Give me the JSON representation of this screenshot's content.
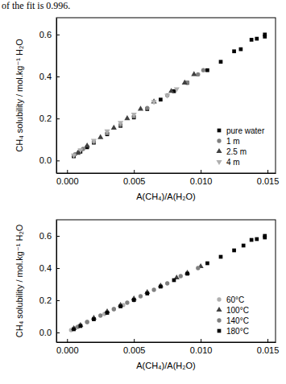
{
  "page_text": "of the fit is 0.996.",
  "chart_data": [
    {
      "type": "scatter",
      "xlabel": "A(CH₄)/A(H₂O)",
      "ylabel": "CH₄ solubility / mol.kg⁻¹ H₂O",
      "xlim": [
        -0.0008,
        0.0156
      ],
      "ylim": [
        -0.06,
        0.68
      ],
      "xticks": [
        {
          "value": 0,
          "label": "0.000"
        },
        {
          "value": 0.005,
          "label": "0.005"
        },
        {
          "value": 0.01,
          "label": "0.010"
        },
        {
          "value": 0.015,
          "label": "0.015"
        }
      ],
      "yticks": [
        {
          "value": 0,
          "label": "0.0"
        },
        {
          "value": 0.2,
          "label": "0.2"
        },
        {
          "value": 0.4,
          "label": "0.4"
        },
        {
          "value": 0.6,
          "label": "0.6"
        }
      ],
      "legend": "lower right",
      "series": [
        {
          "name": "pure water",
          "color": "#000000",
          "marker": "square",
          "x": [
            0.0005,
            0.001,
            0.0015,
            0.002,
            0.003,
            0.004,
            0.005,
            0.006,
            0.007,
            0.008,
            0.009,
            0.0105,
            0.0115,
            0.0125,
            0.013,
            0.0138,
            0.0142,
            0.0148,
            0.0148
          ],
          "values": [
            0.02,
            0.042,
            0.063,
            0.085,
            0.125,
            0.165,
            0.205,
            0.245,
            0.29,
            0.33,
            0.37,
            0.43,
            0.47,
            0.52,
            0.53,
            0.575,
            0.58,
            0.59,
            0.6
          ]
        },
        {
          "name": "1 m",
          "color": "#808080",
          "marker": "circle",
          "x": [
            0.0006,
            0.0012,
            0.002,
            0.003,
            0.004,
            0.005,
            0.006,
            0.0075,
            0.009,
            0.0098,
            0.0102
          ],
          "values": [
            0.03,
            0.055,
            0.09,
            0.13,
            0.17,
            0.21,
            0.25,
            0.31,
            0.37,
            0.41,
            0.43
          ]
        },
        {
          "name": "2.5 m",
          "color": "#404040",
          "marker": "triangle-up",
          "x": [
            0.0008,
            0.0015,
            0.0025,
            0.0035,
            0.0045,
            0.0055,
            0.0065,
            0.0078,
            0.0088,
            0.0095
          ],
          "values": [
            0.035,
            0.07,
            0.11,
            0.155,
            0.2,
            0.245,
            0.28,
            0.33,
            0.37,
            0.41
          ]
        },
        {
          "name": "4 m",
          "color": "#b0b0b0",
          "marker": "triangle-down",
          "x": [
            0.0005,
            0.001,
            0.002,
            0.003,
            0.004,
            0.005,
            0.0065,
            0.0075,
            0.0082
          ],
          "values": [
            0.025,
            0.05,
            0.095,
            0.14,
            0.18,
            0.22,
            0.28,
            0.31,
            0.34
          ]
        }
      ]
    },
    {
      "type": "scatter",
      "xlabel": "A(CH₄)/A(H₂O)",
      "ylabel": "CH₄ solubility / mol.kg⁻¹ H₂O",
      "xlim": [
        -0.0008,
        0.0156
      ],
      "ylim": [
        -0.06,
        0.7
      ],
      "xticks": [
        {
          "value": 0,
          "label": "0.000"
        },
        {
          "value": 0.005,
          "label": "0.005"
        },
        {
          "value": 0.01,
          "label": "0.010"
        },
        {
          "value": 0.015,
          "label": "0.015"
        }
      ],
      "yticks": [
        {
          "value": 0,
          "label": "0.0"
        },
        {
          "value": 0.2,
          "label": "0.2"
        },
        {
          "value": 0.4,
          "label": "0.4"
        },
        {
          "value": 0.6,
          "label": "0.6"
        }
      ],
      "legend": "lower right",
      "series": [
        {
          "name": "60°C",
          "color": "#b0b0b0",
          "marker": "circle",
          "x": [
            0.0003,
            0.0006,
            0.001,
            0.0015,
            0.002,
            0.0028,
            0.0035,
            0.0042,
            0.005
          ],
          "values": [
            0.015,
            0.028,
            0.045,
            0.065,
            0.085,
            0.115,
            0.145,
            0.17,
            0.2
          ]
        },
        {
          "name": "100°C",
          "color": "#404040",
          "marker": "triangle-up",
          "x": [
            0.0005,
            0.001,
            0.002,
            0.003,
            0.004,
            0.005,
            0.006,
            0.007,
            0.0082,
            0.009,
            0.01
          ],
          "values": [
            0.025,
            0.045,
            0.09,
            0.13,
            0.17,
            0.21,
            0.25,
            0.29,
            0.34,
            0.37,
            0.41
          ]
        },
        {
          "name": "140°C",
          "color": "#808080",
          "marker": "circle",
          "x": [
            0.0008,
            0.0015,
            0.0025,
            0.0035,
            0.0045,
            0.0055,
            0.0065,
            0.0075,
            0.0085,
            0.0098
          ],
          "values": [
            0.035,
            0.065,
            0.105,
            0.145,
            0.185,
            0.225,
            0.265,
            0.305,
            0.35,
            0.4
          ]
        },
        {
          "name": "180°C",
          "color": "#000000",
          "marker": "square",
          "x": [
            0.0005,
            0.001,
            0.002,
            0.003,
            0.004,
            0.005,
            0.006,
            0.007,
            0.008,
            0.009,
            0.0105,
            0.0115,
            0.0125,
            0.0132,
            0.0138,
            0.0142,
            0.0148,
            0.0148
          ],
          "values": [
            0.02,
            0.04,
            0.082,
            0.122,
            0.162,
            0.202,
            0.242,
            0.285,
            0.325,
            0.365,
            0.43,
            0.47,
            0.51,
            0.54,
            0.575,
            0.58,
            0.59,
            0.6
          ]
        }
      ]
    }
  ]
}
